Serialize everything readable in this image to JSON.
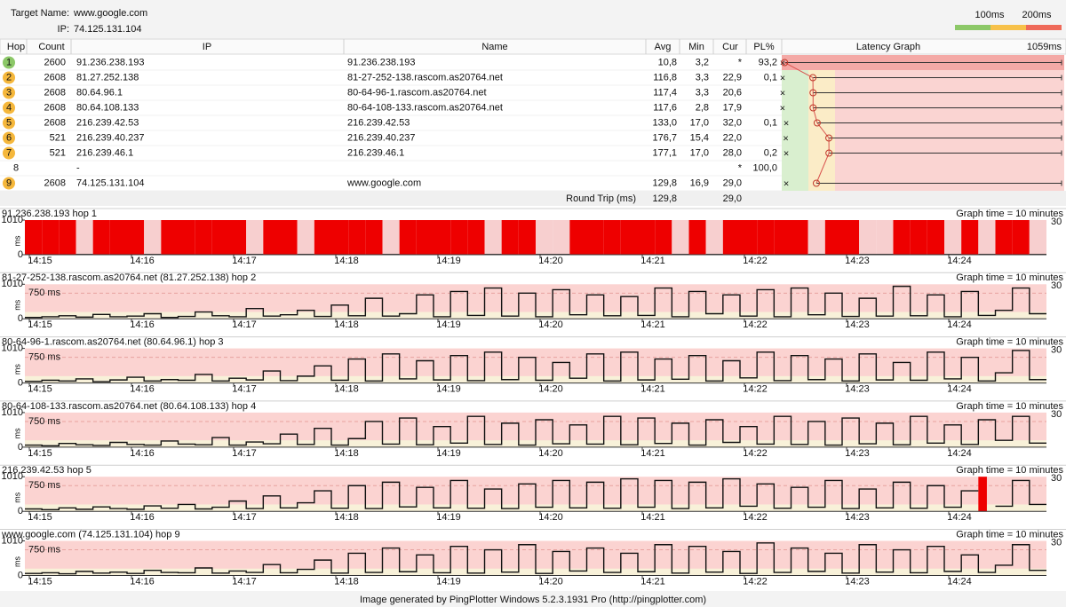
{
  "header": {
    "target_name_label": "Target Name:",
    "target_name": "www.google.com",
    "ip_label": "IP:",
    "ip": "74.125.131.104",
    "legend": [
      "100ms",
      "200ms"
    ]
  },
  "table": {
    "columns": [
      "Hop",
      "Count",
      "IP",
      "Name",
      "Avg",
      "Min",
      "Cur",
      "PL%",
      "Latency Graph"
    ],
    "graph_max": "1059ms",
    "rows": [
      {
        "hop": 1,
        "badge": "green",
        "count": 2600,
        "ip": "91.236.238.193",
        "name": "91.236.238.193",
        "avg": "10,8",
        "min": "3,2",
        "cur": "*",
        "pl": "93,2"
      },
      {
        "hop": 2,
        "badge": "orange",
        "count": 2608,
        "ip": "81.27.252.138",
        "name": "81-27-252-138.rascom.as20764.net",
        "avg": "116,8",
        "min": "3,3",
        "cur": "22,9",
        "pl": "0,1"
      },
      {
        "hop": 3,
        "badge": "orange",
        "count": 2608,
        "ip": "80.64.96.1",
        "name": "80-64-96-1.rascom.as20764.net",
        "avg": "117,4",
        "min": "3,3",
        "cur": "20,6"
      },
      {
        "hop": 4,
        "badge": "orange",
        "count": 2608,
        "ip": "80.64.108.133",
        "name": "80-64-108-133.rascom.as20764.net",
        "avg": "117,6",
        "min": "2,8",
        "cur": "17,9"
      },
      {
        "hop": 5,
        "badge": "orange",
        "count": 2608,
        "ip": "216.239.42.53",
        "name": "216.239.42.53",
        "avg": "133,0",
        "min": "17,0",
        "cur": "32,0",
        "pl": "0,1"
      },
      {
        "hop": 6,
        "badge": "orange",
        "count": 521,
        "ip": "216.239.40.237",
        "name": "216.239.40.237",
        "avg": "176,7",
        "min": "15,4",
        "cur": "22,0"
      },
      {
        "hop": 7,
        "badge": "orange",
        "count": 521,
        "ip": "216.239.46.1",
        "name": "216.239.46.1",
        "avg": "177,1",
        "min": "17,0",
        "cur": "28,0",
        "pl": "0,2"
      },
      {
        "hop": 8,
        "ip": "-",
        "cur": "*",
        "pl": "100,0"
      },
      {
        "hop": 9,
        "badge": "orange",
        "count": 2608,
        "ip": "74.125.131.104",
        "name": "www.google.com",
        "avg": "129,8",
        "min": "16,9",
        "cur": "29,0"
      }
    ],
    "round_trip": {
      "label": "Round Trip (ms)",
      "avg": "129,8",
      "cur": "29,0"
    }
  },
  "graph_axis": {
    "ylim": [
      0,
      1010
    ],
    "yticks": [
      0,
      {
        "value": 750,
        "label": "750 ms"
      },
      1010
    ],
    "unit": "ms",
    "right_label": "30",
    "graph_time": "Graph time = 10 minutes",
    "times": [
      "14:15",
      "14:16",
      "14:17",
      "14:18",
      "14:19",
      "14:20",
      "14:21",
      "14:22",
      "14:23",
      "14:24"
    ]
  },
  "graphs": [
    {
      "title": "91.236.238.193 hop 1",
      "threshold_line": false,
      "values": [
        null,
        null,
        null,
        5,
        null,
        null,
        null,
        5,
        null,
        null,
        null,
        null,
        null,
        5,
        null,
        null,
        5,
        null,
        null,
        null,
        null,
        5,
        null,
        null,
        null,
        null,
        null,
        5,
        null,
        null,
        5,
        5,
        null,
        null,
        null,
        null,
        null,
        null,
        5,
        null,
        5,
        null,
        null,
        null,
        null,
        null,
        5,
        null,
        null,
        5,
        5,
        null,
        null,
        null,
        5,
        null,
        5,
        null,
        null,
        5
      ]
    },
    {
      "title": "81-27-252-138.rascom.as20764.net (81.27.252.138) hop 2",
      "threshold_line": true,
      "values": [
        40,
        60,
        90,
        50,
        130,
        60,
        80,
        150,
        40,
        70,
        200,
        90,
        60,
        300,
        80,
        120,
        250,
        70,
        400,
        90,
        600,
        80,
        150,
        700,
        60,
        800,
        100,
        900,
        80,
        750,
        60,
        850,
        120,
        700,
        90,
        650,
        100,
        900,
        60,
        800,
        150,
        700,
        80,
        850,
        60,
        900,
        120,
        750,
        70,
        600,
        80,
        950,
        90,
        700,
        60,
        800,
        100,
        250,
        900,
        150
      ]
    },
    {
      "title": "80-64-96-1.rascom.as20764.net (80.64.96.1) hop 3",
      "threshold_line": true,
      "values": [
        50,
        80,
        60,
        120,
        40,
        90,
        170,
        60,
        100,
        80,
        250,
        60,
        140,
        90,
        350,
        70,
        200,
        500,
        80,
        700,
        60,
        850,
        120,
        650,
        90,
        800,
        70,
        900,
        100,
        750,
        80,
        600,
        140,
        850,
        60,
        900,
        90,
        700,
        110,
        800,
        60,
        650,
        150,
        900,
        70,
        800,
        100,
        700,
        60,
        850,
        90,
        600,
        80,
        900,
        120,
        750,
        60,
        300,
        950,
        100
      ]
    },
    {
      "title": "80-64-108-133.rascom.as20764.net (80.64.108.133) hop 4",
      "threshold_line": true,
      "values": [
        60,
        40,
        110,
        70,
        50,
        140,
        80,
        60,
        180,
        90,
        70,
        280,
        60,
        150,
        100,
        380,
        80,
        550,
        60,
        250,
        750,
        90,
        850,
        70,
        600,
        120,
        900,
        80,
        700,
        60,
        800,
        100,
        650,
        90,
        900,
        70,
        850,
        110,
        700,
        60,
        800,
        140,
        600,
        90,
        900,
        80,
        750,
        60,
        850,
        100,
        700,
        70,
        900,
        120,
        650,
        80,
        800,
        200,
        900,
        120
      ]
    },
    {
      "title": "216.239.42.53 hop 5",
      "threshold_line": true,
      "values": [
        70,
        50,
        100,
        60,
        130,
        80,
        60,
        160,
        90,
        200,
        70,
        120,
        300,
        80,
        450,
        100,
        250,
        600,
        90,
        750,
        80,
        850,
        130,
        700,
        100,
        900,
        90,
        650,
        80,
        800,
        120,
        900,
        100,
        850,
        90,
        950,
        120,
        900,
        80,
        850,
        100,
        950,
        150,
        800,
        90,
        700,
        120,
        900,
        80,
        650,
        100,
        850,
        90,
        750,
        120,
        600,
        null,
        150,
        900,
        200
      ]
    },
    {
      "title": "www.google.com (74.125.131.104) hop 9",
      "threshold_line": true,
      "values": [
        60,
        80,
        50,
        120,
        70,
        100,
        60,
        150,
        90,
        80,
        220,
        70,
        130,
        90,
        320,
        80,
        180,
        450,
        70,
        650,
        90,
        800,
        110,
        600,
        80,
        850,
        70,
        750,
        100,
        900,
        60,
        700,
        130,
        800,
        90,
        650,
        110,
        900,
        70,
        850,
        100,
        700,
        60,
        950,
        90,
        800,
        120,
        650,
        70,
        900,
        100,
        750,
        80,
        850,
        120,
        600,
        90,
        300,
        900,
        150
      ]
    }
  ],
  "footer": "Image generated by PingPlotter Windows 5.2.3.1931 Pro (http://pingplotter.com)"
}
